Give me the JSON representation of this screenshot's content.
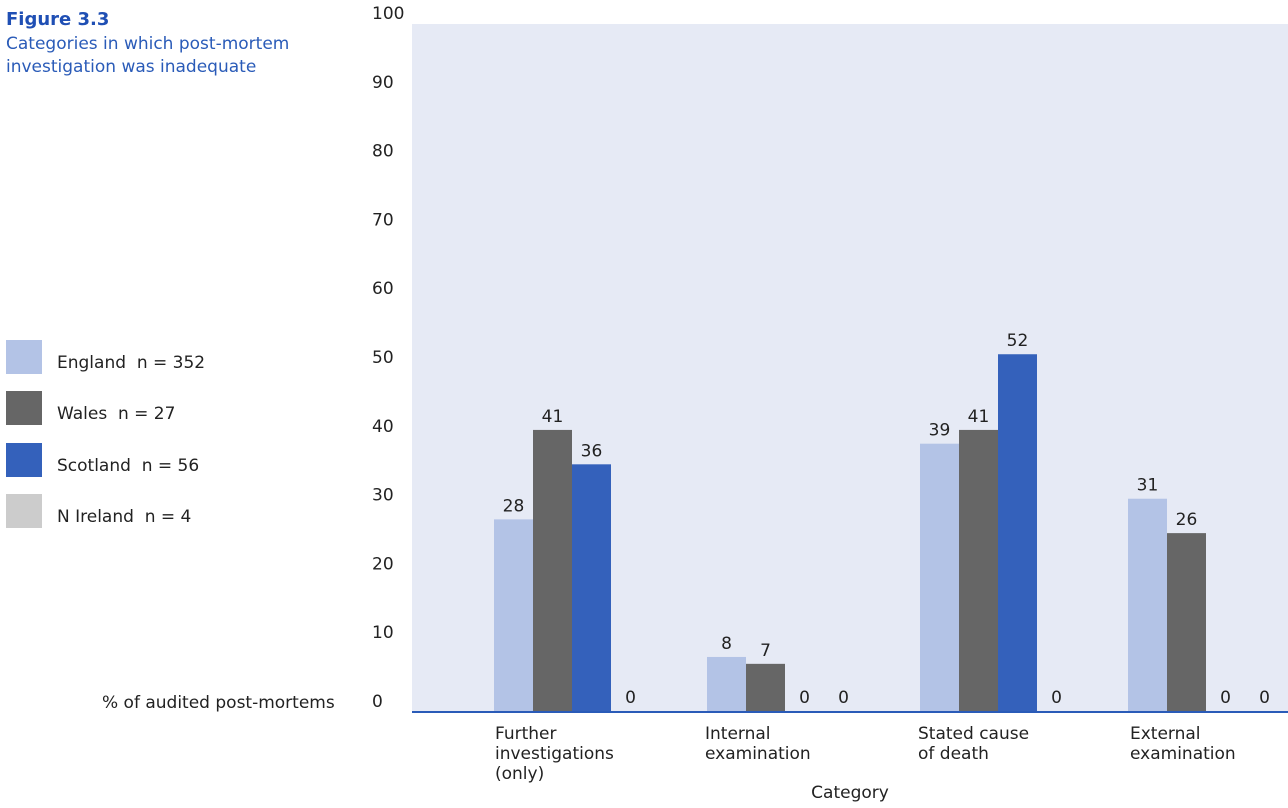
{
  "figure": {
    "number": "Figure 3.3",
    "title": "Categories in which post-mortem investigation was inadequate"
  },
  "legend": {
    "items": [
      {
        "label": "England  n = 352",
        "color": "#b3c3e6"
      },
      {
        "label": "Wales  n = 27",
        "color": "#666666"
      },
      {
        "label": "Scotland  n = 56",
        "color": "#3461bb"
      },
      {
        "label": "N Ireland  n = 4",
        "color": "#cccccc"
      }
    ]
  },
  "chart_data": {
    "type": "bar",
    "title": "Categories in which post-mortem investigation was inadequate",
    "xlabel": "Category",
    "ylabel": "% of audited post-mortems",
    "ylim": [
      0,
      100
    ],
    "yticks": [
      0,
      10,
      20,
      30,
      40,
      50,
      60,
      70,
      80,
      90,
      100
    ],
    "grid": false,
    "plot_background": "#e6eaf5",
    "axis_color": "#2a5bb8",
    "categories": [
      [
        "Further",
        "investigations",
        "(only)"
      ],
      [
        "Internal",
        "examination"
      ],
      [
        "Stated cause",
        "of death"
      ],
      [
        "External",
        "examination"
      ]
    ],
    "series": [
      {
        "name": "England  n = 352",
        "color": "#b3c3e6",
        "values": [
          28,
          8,
          39,
          31
        ],
        "labels": [
          "28",
          "8",
          "39",
          "31"
        ]
      },
      {
        "name": "Wales  n = 27",
        "color": "#666666",
        "values": [
          41,
          7,
          41,
          26
        ],
        "labels": [
          "41",
          "7",
          "41",
          "26"
        ]
      },
      {
        "name": "Scotland  n = 56",
        "color": "#3461bb",
        "values": [
          36,
          0,
          52,
          0
        ],
        "labels": [
          "36",
          "0",
          "52",
          "0"
        ]
      },
      {
        "name": "N Ireland  n = 4",
        "color": "#cccccc",
        "values": [
          0,
          0,
          0,
          0
        ],
        "labels": [
          "0",
          "0",
          "0",
          "0"
        ]
      }
    ]
  }
}
